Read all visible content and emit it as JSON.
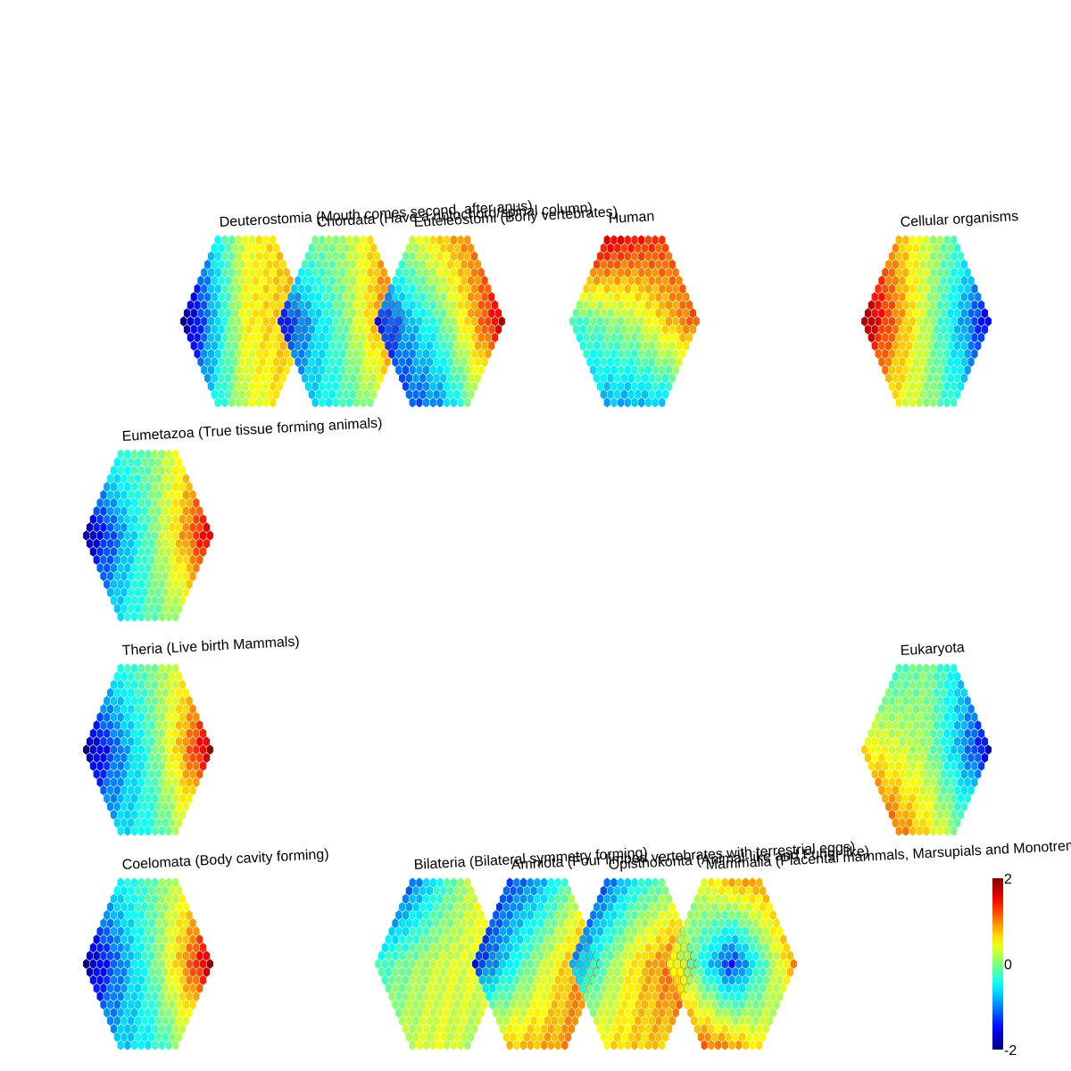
{
  "chart_data": {
    "type": "heatmap",
    "description_kind": "hexagonal self-organizing map panels arranged by taxonomy",
    "colormap": "jet",
    "colorbar": {
      "min": -2,
      "max": 2,
      "ticks": [
        "2",
        "0",
        "-2"
      ]
    },
    "panels": [
      {
        "id": "deuterostomia",
        "label": "Deuterostomia (Mouth comes second, after anus)",
        "pattern": [
          [
            -1.6,
            0.4,
            0.9
          ],
          [
            -2.0,
            0.5,
            0.9
          ],
          [
            -1.4,
            0.3,
            0.8
          ]
        ]
      },
      {
        "id": "chordata",
        "label": "Chordata (Have a notochord/spinal column)",
        "pattern": [
          [
            -0.2,
            0.1,
            1.2
          ],
          [
            -1.5,
            -0.1,
            1.6
          ],
          [
            -1.0,
            -0.3,
            0.6
          ]
        ]
      },
      {
        "id": "euteleostomi",
        "label": "Euteleostomi (Bony vertebrates)",
        "pattern": [
          [
            -0.3,
            0.7,
            1.3
          ],
          [
            -1.4,
            -0.2,
            1.7
          ],
          [
            -1.5,
            -0.9,
            0.8
          ]
        ]
      },
      {
        "id": "human",
        "label": "Human",
        "pattern": [
          [
            1.9,
            1.4,
            1.1
          ],
          [
            -0.3,
            0.2,
            1.2
          ],
          [
            -0.8,
            -0.8,
            -0.4
          ]
        ]
      },
      {
        "id": "cellular_organisms",
        "label": "Cellular organisms",
        "pattern": [
          [
            1.4,
            0.3,
            -0.8
          ],
          [
            1.9,
            0.2,
            -1.6
          ],
          [
            1.0,
            0.1,
            -1.0
          ]
        ]
      },
      {
        "id": "eumetazoa",
        "label": "Eumetazoa (True tissue forming animals)",
        "pattern": [
          [
            -0.6,
            -0.1,
            1.0
          ],
          [
            -1.9,
            -0.2,
            1.7
          ],
          [
            -1.0,
            -0.2,
            0.6
          ]
        ]
      },
      {
        "id": "theria",
        "label": "Theria (Live birth Mammals)",
        "pattern": [
          [
            -0.8,
            -0.1,
            0.9
          ],
          [
            -1.9,
            -0.3,
            1.8
          ],
          [
            -1.0,
            -0.4,
            0.7
          ]
        ]
      },
      {
        "id": "eukaryota",
        "label": "Eukaryota",
        "pattern": [
          [
            -0.5,
            0.0,
            -1.1
          ],
          [
            0.6,
            0.1,
            -1.6
          ],
          [
            1.6,
            0.6,
            -0.6
          ]
        ]
      },
      {
        "id": "coelomata",
        "label": "Coelomata (Body cavity forming)",
        "pattern": [
          [
            -0.9,
            -0.2,
            0.8
          ],
          [
            -1.9,
            -0.3,
            1.8
          ],
          [
            -1.0,
            -0.5,
            0.6
          ]
        ]
      },
      {
        "id": "bilateria",
        "label": "Bilateria (Bilateral symmetry forming)",
        "pattern": [
          [
            -1.9,
            -0.4,
            0.9
          ],
          [
            -0.3,
            0.3,
            0.5
          ],
          [
            0.1,
            0.4,
            0.0
          ]
        ]
      },
      {
        "id": "amniota",
        "label": "Amniota (Four limbed vertebrates with terrestrial eggs)",
        "pattern": [
          [
            -1.6,
            -0.9,
            0.6
          ],
          [
            -1.4,
            0.1,
            1.4
          ],
          [
            0.6,
            0.8,
            1.1
          ]
        ]
      },
      {
        "id": "opisthokonta",
        "label": "Opisthokonta (Animal-like and Fungi-like)",
        "pattern": [
          [
            -1.9,
            -0.5,
            0.3
          ],
          [
            -0.9,
            0.6,
            1.5
          ],
          [
            0.4,
            0.7,
            0.8
          ]
        ]
      },
      {
        "id": "mammalia",
        "label": "Mammalia (Placental mammals, Marsupials and Monotremes)",
        "pattern": [
          [
            -0.1,
            0.8,
            1.0
          ],
          [
            0.6,
            -1.4,
            0.9
          ],
          [
            1.3,
            0.9,
            0.0
          ]
        ]
      }
    ]
  }
}
